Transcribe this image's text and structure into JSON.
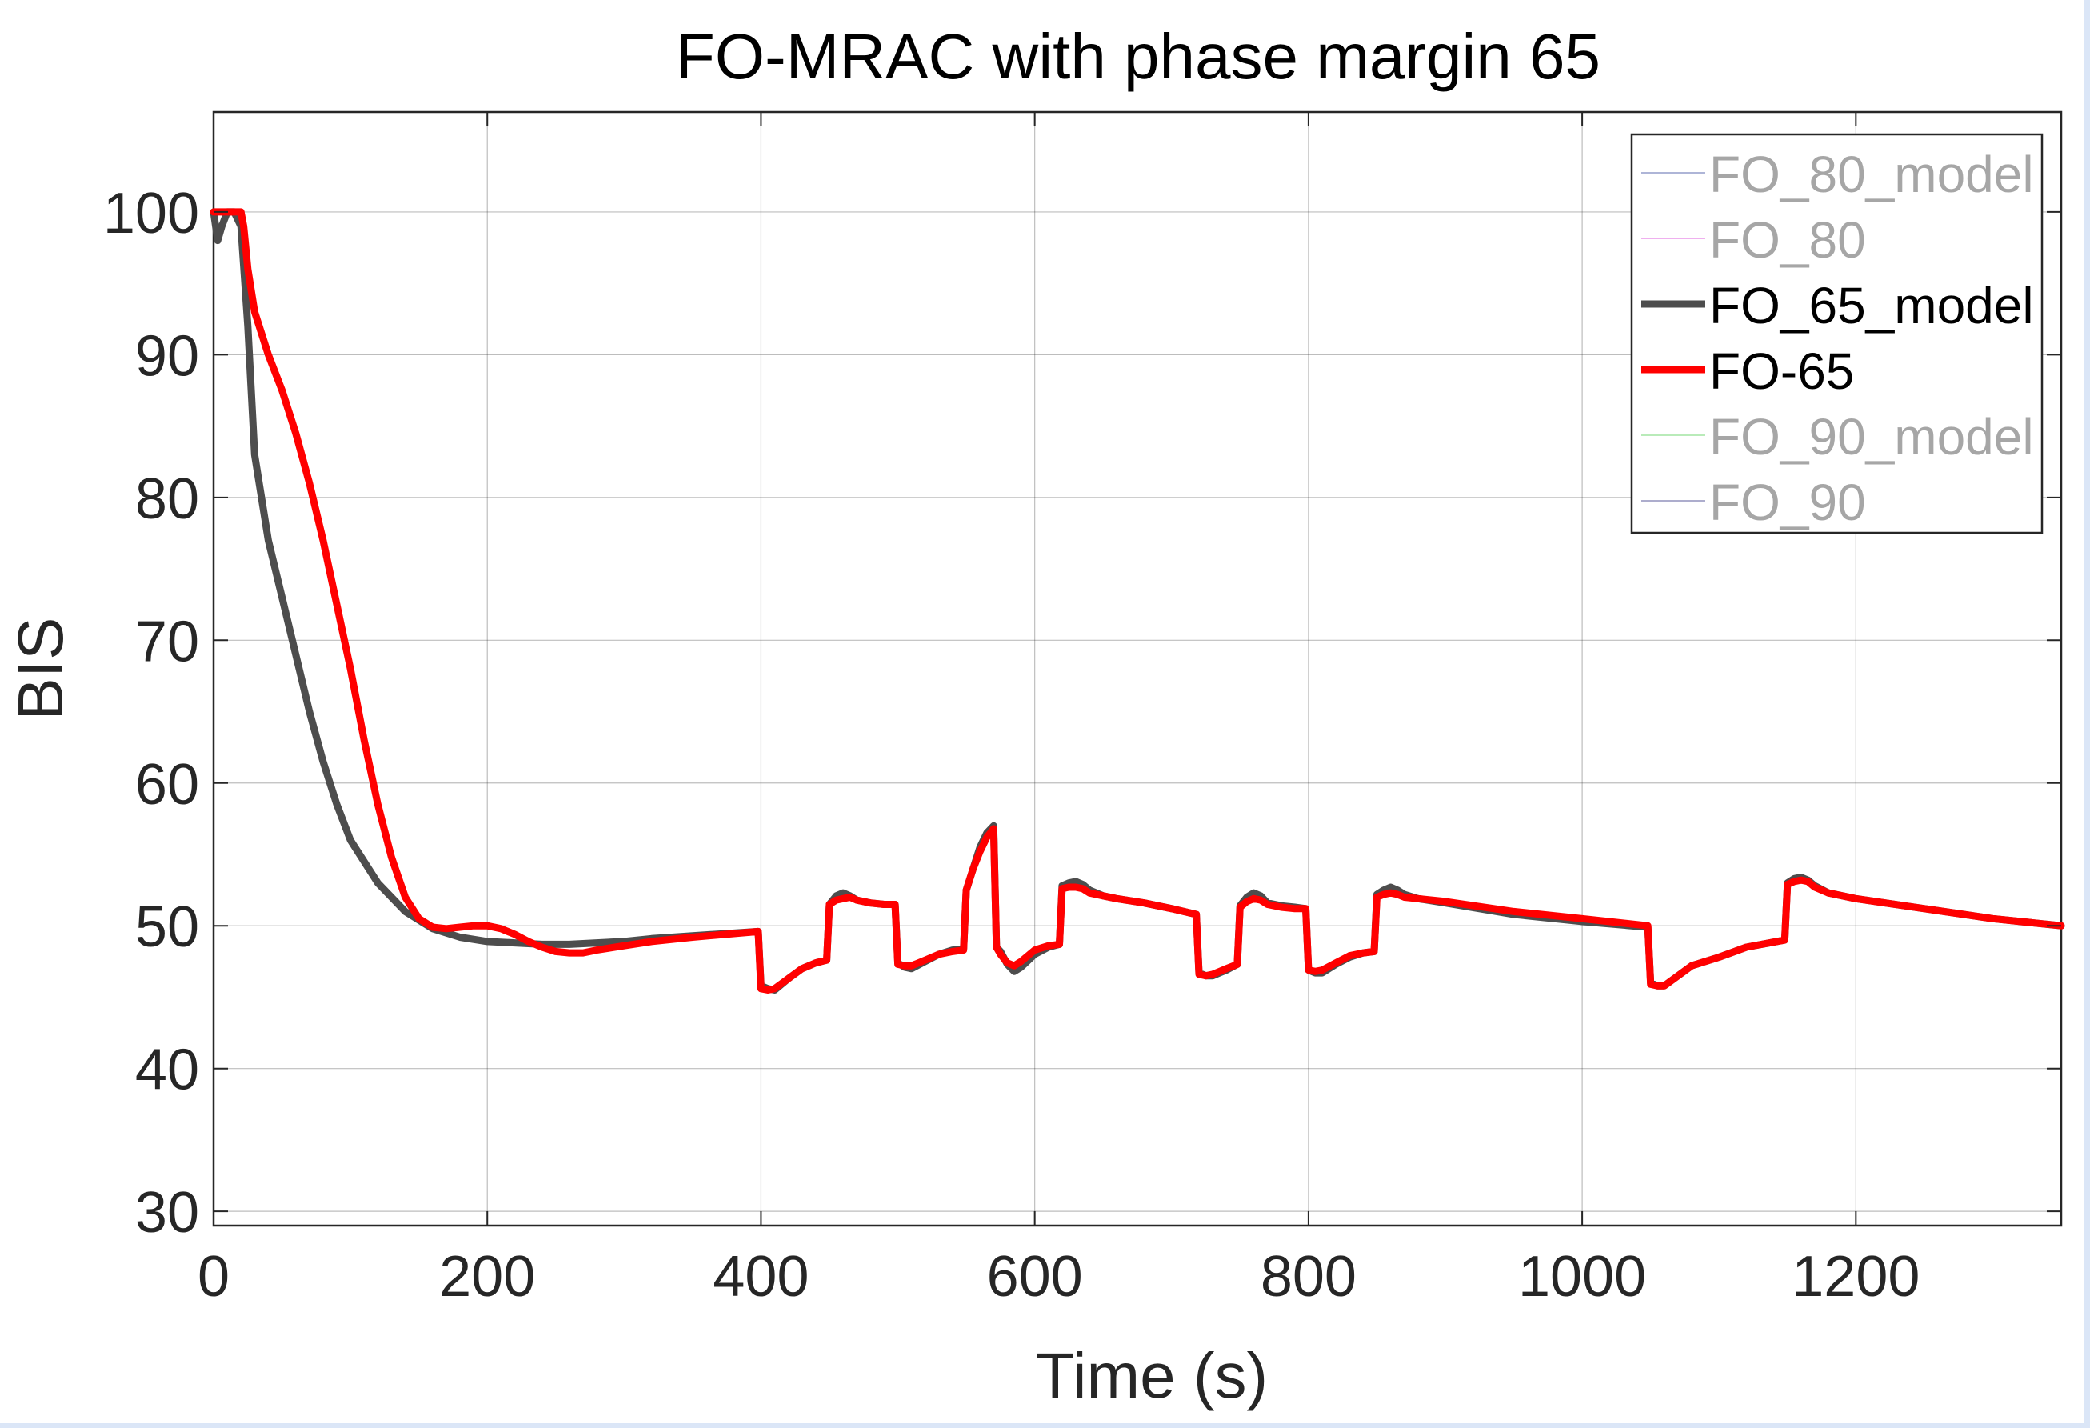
{
  "chart_data": {
    "type": "line",
    "title": "FO-MRAC with phase margin 65",
    "xlabel": "Time (s)",
    "ylabel": "BIS",
    "xlim": [
      0,
      1350
    ],
    "ylim": [
      29,
      107
    ],
    "xticks": [
      0,
      200,
      400,
      600,
      800,
      1000,
      1200
    ],
    "yticks": [
      30,
      40,
      50,
      60,
      70,
      80,
      90,
      100
    ],
    "grid": true,
    "legend_position": "top-right",
    "legend": [
      {
        "label": "FO_80_model",
        "color": "#8c96c6",
        "dimmed": true
      },
      {
        "label": "FO_80",
        "color": "#e88ee8",
        "dimmed": true
      },
      {
        "label": "FO_65_model",
        "color": "#4d4d4d",
        "dimmed": false
      },
      {
        "label": "FO-65",
        "color": "#ff0000",
        "dimmed": false
      },
      {
        "label": "FO_90_model",
        "color": "#9be39b",
        "dimmed": true
      },
      {
        "label": "FO_90",
        "color": "#8a8ab8",
        "dimmed": true
      }
    ],
    "series": [
      {
        "name": "FO_65_model",
        "color": "#4d4d4d",
        "x": [
          0,
          3,
          6,
          10,
          15,
          20,
          25,
          30,
          40,
          50,
          60,
          70,
          80,
          90,
          100,
          120,
          140,
          160,
          180,
          200,
          220,
          240,
          260,
          280,
          300,
          320,
          350,
          398,
          400,
          405,
          410,
          420,
          430,
          440,
          448,
          450,
          455,
          460,
          465,
          470,
          480,
          490,
          498,
          500,
          505,
          510,
          520,
          530,
          540,
          548,
          550,
          555,
          560,
          565,
          570,
          572,
          575,
          580,
          585,
          590,
          600,
          610,
          618,
          620,
          625,
          630,
          635,
          640,
          650,
          660,
          680,
          700,
          718,
          720,
          725,
          730,
          740,
          748,
          750,
          755,
          760,
          765,
          770,
          780,
          790,
          798,
          800,
          805,
          810,
          820,
          830,
          840,
          848,
          850,
          855,
          860,
          865,
          870,
          880,
          900,
          950,
          1000,
          1048,
          1050,
          1055,
          1060,
          1070,
          1080,
          1100,
          1120,
          1148,
          1150,
          1155,
          1160,
          1165,
          1170,
          1180,
          1200,
          1250,
          1300,
          1350
        ],
        "y": [
          100,
          98,
          99,
          100,
          100,
          99,
          92,
          83,
          77,
          73,
          69,
          65,
          61.5,
          58.5,
          56,
          53,
          51,
          49.8,
          49.2,
          48.9,
          48.8,
          48.7,
          48.7,
          48.8,
          48.9,
          49.1,
          49.3,
          49.6,
          45.8,
          45.6,
          45.5,
          46.3,
          47,
          47.4,
          47.6,
          51.5,
          52.1,
          52.3,
          52.1,
          51.8,
          51.6,
          51.5,
          51.5,
          47.4,
          47.1,
          47.0,
          47.5,
          48.0,
          48.3,
          48.4,
          52.5,
          54,
          55.5,
          56.5,
          57,
          48.5,
          48.2,
          47.3,
          46.8,
          47.1,
          48.0,
          48.5,
          48.7,
          52.8,
          53,
          53.1,
          52.9,
          52.5,
          52.1,
          51.9,
          51.6,
          51.2,
          50.8,
          46.7,
          46.5,
          46.5,
          46.9,
          47.3,
          51.4,
          52.0,
          52.3,
          52.1,
          51.6,
          51.4,
          51.3,
          51.2,
          46.9,
          46.7,
          46.7,
          47.3,
          47.8,
          48.1,
          48.2,
          52.2,
          52.5,
          52.7,
          52.5,
          52.2,
          51.9,
          51.6,
          50.8,
          50.3,
          49.9,
          46.0,
          45.8,
          45.8,
          46.5,
          47.2,
          47.8,
          48.5,
          49.0,
          53.0,
          53.3,
          53.4,
          53.2,
          52.8,
          52.3,
          51.9,
          51.2,
          50.5,
          50.0
        ]
      },
      {
        "name": "FO-65",
        "color": "#ff0000",
        "x": [
          0,
          5,
          10,
          15,
          20,
          22,
          25,
          30,
          40,
          50,
          60,
          70,
          80,
          90,
          100,
          110,
          120,
          130,
          140,
          150,
          160,
          170,
          180,
          190,
          200,
          210,
          220,
          230,
          240,
          250,
          260,
          270,
          280,
          300,
          320,
          350,
          398,
          400,
          405,
          410,
          420,
          430,
          440,
          448,
          450,
          455,
          460,
          465,
          470,
          480,
          490,
          498,
          500,
          505,
          510,
          520,
          530,
          540,
          548,
          550,
          555,
          560,
          565,
          570,
          572,
          575,
          580,
          585,
          590,
          600,
          610,
          618,
          620,
          625,
          630,
          635,
          640,
          650,
          660,
          680,
          700,
          718,
          720,
          725,
          730,
          740,
          748,
          750,
          755,
          760,
          765,
          770,
          780,
          790,
          798,
          800,
          805,
          810,
          820,
          830,
          840,
          848,
          850,
          855,
          860,
          865,
          870,
          880,
          900,
          950,
          1000,
          1048,
          1050,
          1055,
          1060,
          1070,
          1080,
          1100,
          1120,
          1148,
          1150,
          1155,
          1160,
          1165,
          1170,
          1180,
          1200,
          1250,
          1300,
          1350
        ],
        "y": [
          100,
          100,
          100,
          100,
          100,
          99,
          96,
          93,
          90,
          87.5,
          84.5,
          81,
          77,
          72.5,
          68,
          63,
          58.5,
          54.8,
          52.0,
          50.5,
          49.9,
          49.8,
          49.9,
          50.0,
          50.0,
          49.8,
          49.4,
          48.9,
          48.5,
          48.2,
          48.1,
          48.1,
          48.3,
          48.6,
          48.9,
          49.2,
          49.6,
          45.6,
          45.5,
          45.6,
          46.3,
          47.0,
          47.4,
          47.6,
          51.5,
          51.8,
          51.9,
          52.0,
          51.8,
          51.6,
          51.5,
          51.5,
          47.3,
          47.2,
          47.2,
          47.6,
          48.0,
          48.2,
          48.3,
          52.5,
          54.0,
          55.2,
          56.2,
          56.8,
          48.5,
          48.0,
          47.4,
          47.2,
          47.5,
          48.3,
          48.6,
          48.7,
          52.6,
          52.7,
          52.7,
          52.6,
          52.3,
          52.1,
          51.9,
          51.6,
          51.2,
          50.8,
          46.6,
          46.5,
          46.6,
          47.0,
          47.3,
          51.3,
          51.7,
          51.9,
          51.8,
          51.5,
          51.3,
          51.2,
          51.2,
          46.9,
          46.8,
          46.9,
          47.4,
          47.9,
          48.1,
          48.2,
          52.0,
          52.2,
          52.3,
          52.2,
          52.0,
          51.9,
          51.7,
          51.0,
          50.5,
          50.0,
          45.9,
          45.8,
          45.8,
          46.5,
          47.2,
          47.8,
          48.5,
          49.0,
          52.9,
          53.1,
          53.2,
          53.1,
          52.7,
          52.3,
          51.9,
          51.2,
          50.5,
          50.0
        ]
      }
    ]
  }
}
